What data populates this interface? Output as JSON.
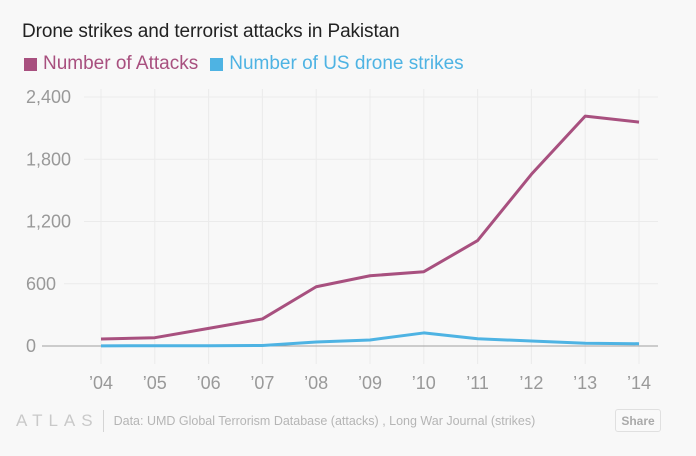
{
  "chart_data": {
    "type": "line",
    "title": "Drone strikes and terrorist attacks in Pakistan",
    "xlabel": "",
    "ylabel": "",
    "categories": [
      "’04",
      "’05",
      "’06",
      "’07",
      "’08",
      "’09",
      "’10",
      "’11",
      "’12",
      "’13",
      "’14"
    ],
    "yticks": [
      0,
      600,
      1200,
      1800,
      2400
    ],
    "ytick_labels": [
      "0",
      "600",
      "1,200",
      "1,800",
      "2,400"
    ],
    "ylim": [
      0,
      2400
    ],
    "grid": true,
    "legend_position": "top-left",
    "series": [
      {
        "name": "Number of Attacks",
        "color": "#a8507f",
        "values": [
          68,
          80,
          170,
          261,
          571,
          677,
          716,
          1016,
          1655,
          2216,
          2158
        ]
      },
      {
        "name": "Number of US drone strikes",
        "color": "#4eb3e3",
        "values": [
          1,
          3,
          2,
          5,
          39,
          58,
          126,
          70,
          48,
          26,
          22
        ]
      }
    ]
  },
  "footer": {
    "logo": "ATLAS",
    "source": "Data: UMD Global Terrorism Database (attacks) , Long War Journal (strikes)",
    "share_label": "Share"
  }
}
